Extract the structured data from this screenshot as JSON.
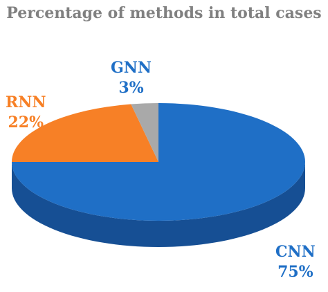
{
  "chart_data": {
    "type": "pie",
    "title": "Percentage of methods in total cases",
    "three_d": true,
    "slices": [
      {
        "label": "CNN",
        "percent_label": "75%",
        "value": 75,
        "color": "#1f6fc6",
        "side_color": "#164f94",
        "label_color": "#1f6fc6"
      },
      {
        "label": "RNN",
        "percent_label": "22%",
        "value": 22,
        "color": "#f78026",
        "side_color": "#c45f14",
        "label_color": "#f78026"
      },
      {
        "label": "GNN",
        "percent_label": "3%",
        "value": 3,
        "color": "#a9a9a9",
        "side_color": "#7f7f7f",
        "label_color": "#1f6fc6"
      }
    ]
  }
}
